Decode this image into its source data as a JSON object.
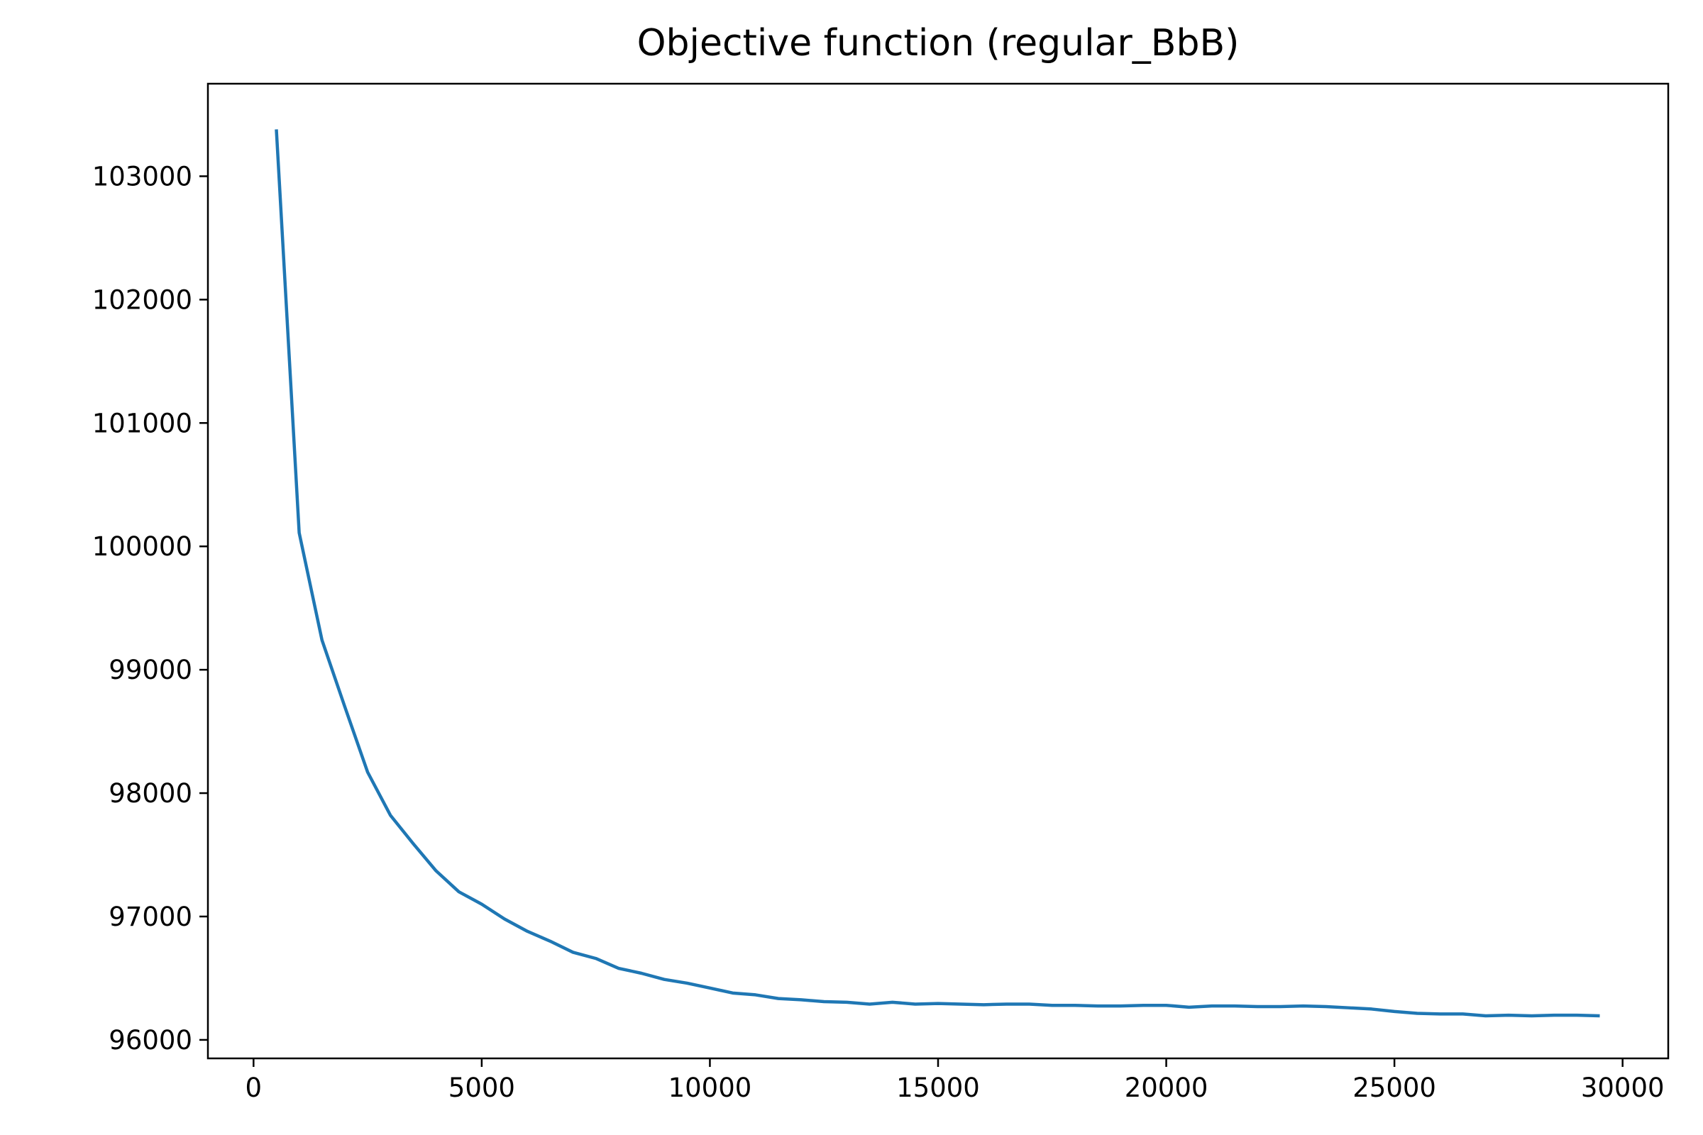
{
  "chart_data": {
    "type": "line",
    "title": "Objective function (regular_BbB)",
    "xlabel": "",
    "ylabel": "",
    "xlim": [
      -1000,
      31000
    ],
    "ylim": [
      95850,
      103750
    ],
    "xticks": [
      0,
      5000,
      10000,
      15000,
      20000,
      25000,
      30000
    ],
    "yticks": [
      96000,
      97000,
      98000,
      99000,
      100000,
      101000,
      102000,
      103000
    ],
    "grid": false,
    "line_color": "#1f77b4",
    "series": [
      {
        "x": [
          500,
          1000,
          1500,
          2000,
          2500,
          3000,
          3500,
          4000,
          4500,
          5000,
          5500,
          6000,
          6500,
          7000,
          7500,
          8000,
          8500,
          9000,
          9500,
          10000,
          10500,
          11000,
          11500,
          12000,
          12500,
          13000,
          13500,
          14000,
          14500,
          15000,
          15500,
          16000,
          16500,
          17000,
          17500,
          18000,
          18500,
          19000,
          19500,
          20000,
          20500,
          21000,
          21500,
          22000,
          22500,
          23000,
          23500,
          24000,
          24500,
          25000,
          25500,
          26000,
          26500,
          27000,
          27500,
          28000,
          28500,
          29000,
          29500
        ],
        "y": [
          103380,
          100110,
          99240,
          98700,
          98170,
          97820,
          97590,
          97370,
          97200,
          97100,
          96980,
          96880,
          96800,
          96710,
          96660,
          96580,
          96540,
          96490,
          96460,
          96420,
          96380,
          96365,
          96335,
          96325,
          96310,
          96305,
          96290,
          96305,
          96290,
          96295,
          96290,
          96285,
          96290,
          96290,
          96280,
          96280,
          96275,
          96275,
          96280,
          96280,
          96265,
          96275,
          96275,
          96270,
          96270,
          96275,
          96270,
          96260,
          96250,
          96230,
          96215,
          96210,
          96210,
          96195,
          96200,
          96195,
          96200,
          96200,
          96195
        ]
      }
    ]
  }
}
